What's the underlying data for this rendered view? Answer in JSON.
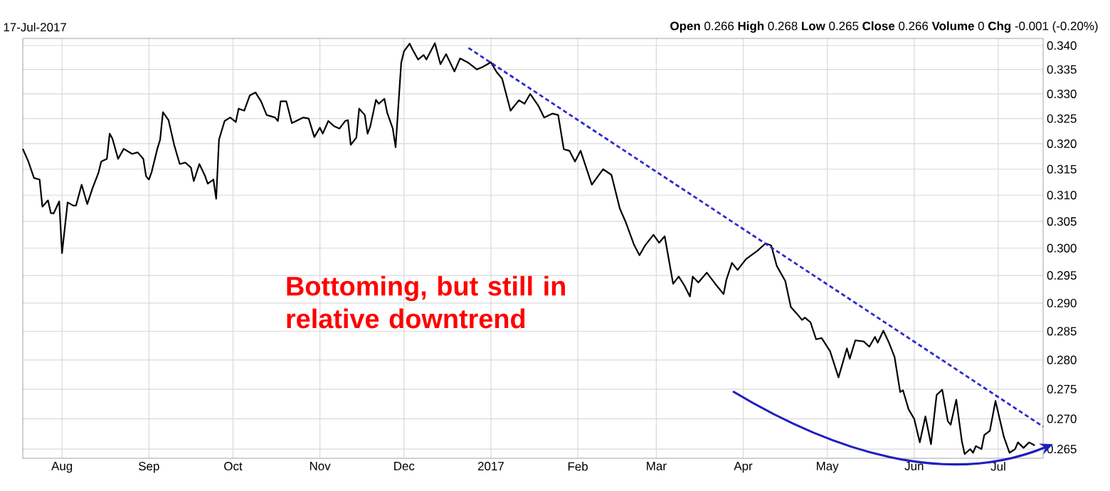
{
  "chart_data": {
    "type": "line",
    "log": true,
    "grid": true,
    "xlim": [
      "2016-07-18",
      "2017-07-17"
    ],
    "ylim": [
      0.2635,
      0.3415
    ],
    "xticks": [
      {
        "value": "2016-08-01",
        "label": "Aug"
      },
      {
        "value": "2016-09-01",
        "label": "Sep"
      },
      {
        "value": "2016-10-01",
        "label": "Oct"
      },
      {
        "value": "2016-11-01",
        "label": "Nov"
      },
      {
        "value": "2016-12-01",
        "label": "Dec"
      },
      {
        "value": "2017-01-01",
        "label": "2017"
      },
      {
        "value": "2017-02-01",
        "label": "Feb"
      },
      {
        "value": "2017-03-01",
        "label": "Mar"
      },
      {
        "value": "2017-04-01",
        "label": "Apr"
      },
      {
        "value": "2017-05-01",
        "label": "May"
      },
      {
        "value": "2017-06-01",
        "label": "Jun"
      },
      {
        "value": "2017-07-01",
        "label": "Jul"
      }
    ],
    "yticks": [
      0.265,
      {
        "value": 0.27,
        "label": "0.270"
      },
      0.275,
      {
        "value": 0.28,
        "label": "0.280"
      },
      0.285,
      {
        "value": 0.29,
        "label": "0.290"
      },
      0.295,
      {
        "value": 0.3,
        "label": "0.300"
      },
      0.305,
      {
        "value": 0.31,
        "label": "0.310"
      },
      0.315,
      {
        "value": 0.32,
        "label": "0.320"
      },
      0.325,
      {
        "value": 0.33,
        "label": "0.330"
      },
      0.335,
      {
        "value": 0.34,
        "label": "0.340"
      }
    ],
    "annotations": [
      "17-Jul-2017",
      "**Open** 0.266  **High** 0.268  **Low** 0.265  **Close** 0.266  **Volume** 0  **Chg** -0.001 (-0.20%)",
      "Bottoming, but still in relative downtrend"
    ],
    "series": [
      {
        "color": "#000000",
        "x": [
          "2016-07-18",
          "2016-07-20",
          "2016-07-22",
          "2016-07-24",
          "2016-07-25",
          "2016-07-27",
          "2016-07-28",
          "2016-07-29",
          "2016-07-31",
          "2016-08-01",
          "2016-08-03",
          "2016-08-05",
          "2016-08-06",
          "2016-08-08",
          "2016-08-10",
          "2016-08-12",
          "2016-08-14",
          "2016-08-15",
          "2016-08-17",
          "2016-08-18",
          "2016-08-19",
          "2016-08-21",
          "2016-08-23",
          "2016-08-26",
          "2016-08-28",
          "2016-08-30",
          "2016-08-31",
          "2016-09-01",
          "2016-09-02",
          "2016-09-04",
          "2016-09-05",
          "2016-09-06",
          "2016-09-08",
          "2016-09-10",
          "2016-09-12",
          "2016-09-14",
          "2016-09-16",
          "2016-09-17",
          "2016-09-19",
          "2016-09-21",
          "2016-09-22",
          "2016-09-24",
          "2016-09-25",
          "2016-09-26",
          "2016-09-28",
          "2016-09-30",
          "2016-10-02",
          "2016-10-03",
          "2016-10-05",
          "2016-10-07",
          "2016-10-09",
          "2016-10-11",
          "2016-10-13",
          "2016-10-16",
          "2016-10-17",
          "2016-10-18",
          "2016-10-20",
          "2016-10-22",
          "2016-10-26",
          "2016-10-28",
          "2016-10-30",
          "2016-11-01",
          "2016-11-02",
          "2016-11-04",
          "2016-11-06",
          "2016-11-08",
          "2016-11-10",
          "2016-11-11",
          "2016-11-12",
          "2016-11-14",
          "2016-11-15",
          "2016-11-17",
          "2016-11-18",
          "2016-11-19",
          "2016-11-21",
          "2016-11-22",
          "2016-11-24",
          "2016-11-25",
          "2016-11-27",
          "2016-11-28",
          "2016-11-30",
          "2016-12-01",
          "2016-12-03",
          "2016-12-04",
          "2016-12-06",
          "2016-12-08",
          "2016-12-09",
          "2016-12-12",
          "2016-12-14",
          "2016-12-16",
          "2016-12-19",
          "2016-12-21",
          "2016-12-24",
          "2016-12-27",
          "2016-12-29",
          "2017-01-01",
          "2017-01-03",
          "2017-01-05",
          "2017-01-08",
          "2017-01-11",
          "2017-01-13",
          "2017-01-15",
          "2017-01-18",
          "2017-01-20",
          "2017-01-23",
          "2017-01-25",
          "2017-01-27",
          "2017-01-29",
          "2017-01-31",
          "2017-02-02",
          "2017-02-06",
          "2017-02-10",
          "2017-02-13",
          "2017-02-16",
          "2017-02-18",
          "2017-02-21",
          "2017-02-23",
          "2017-02-25",
          "2017-02-28",
          "2017-03-02",
          "2017-03-04",
          "2017-03-07",
          "2017-03-09",
          "2017-03-11",
          "2017-03-13",
          "2017-03-14",
          "2017-03-16",
          "2017-03-19",
          "2017-03-22",
          "2017-03-25",
          "2017-03-26",
          "2017-03-28",
          "2017-03-30",
          "2017-04-02",
          "2017-04-06",
          "2017-04-09",
          "2017-04-11",
          "2017-04-13",
          "2017-04-16",
          "2017-04-18",
          "2017-04-20",
          "2017-04-22",
          "2017-04-23",
          "2017-04-25",
          "2017-04-27",
          "2017-04-29",
          "2017-05-02",
          "2017-05-05",
          "2017-05-08",
          "2017-05-09",
          "2017-05-11",
          "2017-05-14",
          "2017-05-16",
          "2017-05-18",
          "2017-05-19",
          "2017-05-21",
          "2017-05-23",
          "2017-05-25",
          "2017-05-27",
          "2017-05-28",
          "2017-05-30",
          "2017-06-01",
          "2017-06-03",
          "2017-06-05",
          "2017-06-07",
          "2017-06-09",
          "2017-06-11",
          "2017-06-13",
          "2017-06-14",
          "2017-06-16",
          "2017-06-18",
          "2017-06-19",
          "2017-06-21",
          "2017-06-22",
          "2017-06-23",
          "2017-06-25",
          "2017-06-26",
          "2017-06-28",
          "2017-06-30",
          "2017-07-03",
          "2017-07-05",
          "2017-07-07",
          "2017-07-08",
          "2017-07-10",
          "2017-07-12",
          "2017-07-14"
        ],
        "values": [
          0.319,
          0.3165,
          0.3133,
          0.313,
          0.3078,
          0.309,
          0.3066,
          0.3065,
          0.3088,
          0.2991,
          0.3086,
          0.308,
          0.308,
          0.312,
          0.3083,
          0.3115,
          0.3143,
          0.3165,
          0.317,
          0.322,
          0.321,
          0.317,
          0.319,
          0.318,
          0.3183,
          0.317,
          0.3136,
          0.313,
          0.3145,
          0.319,
          0.3208,
          0.3263,
          0.3247,
          0.3198,
          0.316,
          0.3163,
          0.3153,
          0.3127,
          0.316,
          0.3137,
          0.3122,
          0.313,
          0.3093,
          0.3208,
          0.3245,
          0.3252,
          0.3243,
          0.327,
          0.3266,
          0.3297,
          0.3303,
          0.3285,
          0.3257,
          0.3252,
          0.3245,
          0.3285,
          0.3285,
          0.3241,
          0.3252,
          0.325,
          0.3213,
          0.3232,
          0.322,
          0.3245,
          0.3235,
          0.323,
          0.3245,
          0.3247,
          0.3198,
          0.3212,
          0.327,
          0.3257,
          0.322,
          0.3235,
          0.3288,
          0.328,
          0.329,
          0.3262,
          0.323,
          0.3193,
          0.3364,
          0.3388,
          0.3404,
          0.3392,
          0.3371,
          0.338,
          0.3371,
          0.3405,
          0.3361,
          0.3382,
          0.3346,
          0.3373,
          0.3364,
          0.335,
          0.3355,
          0.3365,
          0.3345,
          0.3331,
          0.3266,
          0.3287,
          0.328,
          0.33,
          0.3275,
          0.3252,
          0.326,
          0.3257,
          0.3189,
          0.3186,
          0.3165,
          0.3186,
          0.312,
          0.315,
          0.3139,
          0.3074,
          0.305,
          0.3007,
          0.2987,
          0.3005,
          0.3025,
          0.301,
          0.3022,
          0.2935,
          0.2948,
          0.2932,
          0.2912,
          0.2948,
          0.2937,
          0.2955,
          0.2935,
          0.2916,
          0.2942,
          0.2973,
          0.296,
          0.298,
          0.2995,
          0.3009,
          0.3005,
          0.2967,
          0.294,
          0.2893,
          0.2882,
          0.287,
          0.2874,
          0.2866,
          0.2836,
          0.2838,
          0.2815,
          0.277,
          0.282,
          0.2802,
          0.2834,
          0.2832,
          0.2823,
          0.284,
          0.283,
          0.2851,
          0.283,
          0.2805,
          0.2745,
          0.2748,
          0.2716,
          0.27,
          0.2661,
          0.2704,
          0.2658,
          0.274,
          0.2749,
          0.2696,
          0.269,
          0.2732,
          0.2663,
          0.2642,
          0.265,
          0.2644,
          0.2655,
          0.265,
          0.2673,
          0.268,
          0.273,
          0.267,
          0.2644,
          0.265,
          0.2661,
          0.2652,
          0.2661,
          0.2656
        ]
      },
      {
        "type": "line",
        "color": "#2b2bcc",
        "line_style": "dashed",
        "x": [
          "2016-12-24",
          "2017-07-17"
        ],
        "values": [
          0.3395,
          0.2687
        ]
      }
    ]
  }
}
